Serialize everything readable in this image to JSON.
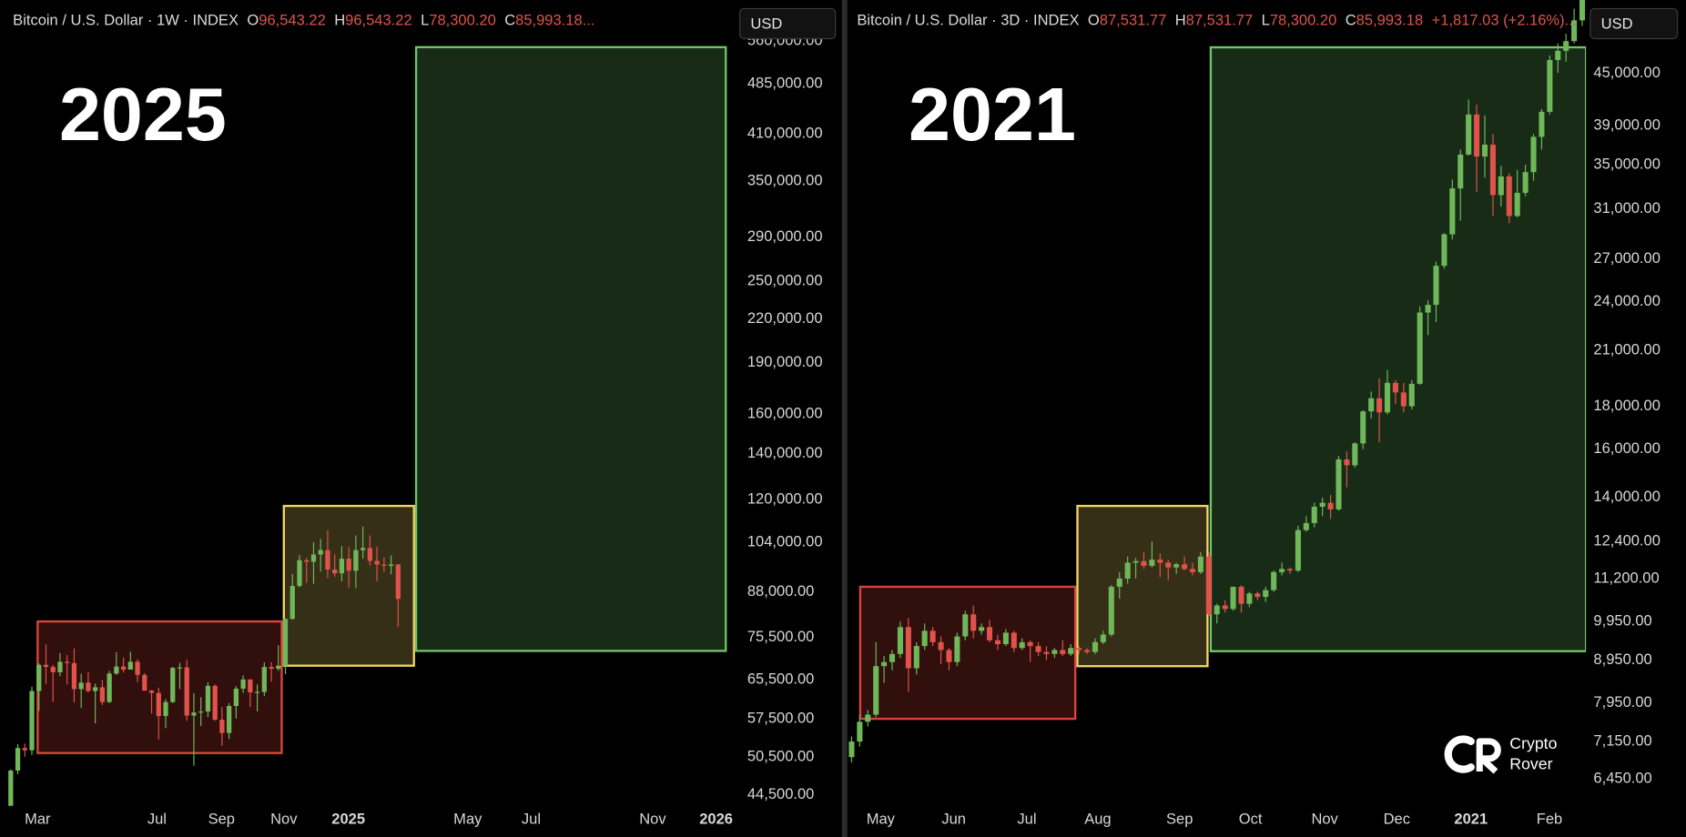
{
  "chart_data": [
    {
      "type": "candlestick",
      "header": {
        "symbol": "Bitcoin / U.S. Dollar · 1W · INDEX",
        "fields": [
          [
            "O",
            "96,543.22"
          ],
          [
            "H",
            "96,543.22"
          ],
          [
            "L",
            "78,300.20"
          ],
          [
            "C",
            "85,993.18..."
          ]
        ]
      },
      "currency": "USD",
      "year_label": "2025",
      "categories": [
        "Mar",
        "Jul",
        "Sep",
        "Nov",
        "2025",
        "May",
        "Jul",
        "Nov",
        "2026"
      ],
      "log_scale": true,
      "ylim": [
        42900,
        643000
      ],
      "yticks": [
        {
          "value": 44500,
          "label": "44,500.00"
        },
        {
          "value": 50500,
          "label": "50,500.00"
        },
        {
          "value": 57500,
          "label": "57,500.00"
        },
        {
          "value": 65500,
          "label": "65,500.00"
        },
        {
          "value": 75500,
          "label": "75,500.00"
        },
        {
          "value": 88000,
          "label": "88,000.00"
        },
        {
          "value": 104000,
          "label": "104,000.00"
        },
        {
          "value": 120000,
          "label": "120,000.00"
        },
        {
          "value": 140000,
          "label": "140,000.00"
        },
        {
          "value": 160000,
          "label": "160,000.00"
        },
        {
          "value": 190000,
          "label": "190,000.00"
        },
        {
          "value": 220000,
          "label": "220,000.00"
        },
        {
          "value": 250000,
          "label": "250,000.00"
        },
        {
          "value": 290000,
          "label": "290,000.00"
        },
        {
          "value": 350000,
          "label": "350,000.00"
        },
        {
          "value": 410000,
          "label": "410,000.00"
        },
        {
          "value": 485000,
          "label": "485,000.00"
        },
        {
          "value": 560000,
          "label": "560,000.00"
        }
      ],
      "up_color": "#6fb85a",
      "down_color": "#e0534b",
      "zones": [
        {
          "color": "#d9443c",
          "low": 51230,
          "high": 79700
        },
        {
          "color": "#f0d468",
          "low": 68700,
          "high": 117500
        },
        {
          "color": "#6fc46a",
          "low": 72200,
          "high": 548800
        }
      ],
      "candles": [
        [
          42600,
          48500,
          42500,
          48300
        ],
        [
          48300,
          52800,
          47700,
          52100
        ],
        [
          52100,
          52900,
          50600,
          51700
        ],
        [
          51700,
          64000,
          50900,
          63100
        ],
        [
          63100,
          69200,
          59000,
          68900
        ],
        [
          68900,
          73800,
          64600,
          68400
        ],
        [
          68400,
          68900,
          60800,
          67200
        ],
        [
          67200,
          71700,
          66300,
          69600
        ],
        [
          69600,
          71200,
          64500,
          69300
        ],
        [
          69300,
          72800,
          60700,
          63500
        ],
        [
          63500,
          66900,
          59600,
          64900
        ],
        [
          64900,
          67200,
          62800,
          63100
        ],
        [
          63100,
          64700,
          56600,
          63900
        ],
        [
          63900,
          65500,
          60200,
          60800
        ],
        [
          60800,
          67500,
          60600,
          66900
        ],
        [
          66900,
          71900,
          66600,
          68500
        ],
        [
          68500,
          70600,
          67100,
          67800
        ],
        [
          67800,
          72000,
          67800,
          69600
        ],
        [
          69600,
          70200,
          65000,
          66600
        ],
        [
          66600,
          67000,
          63100,
          63200
        ],
        [
          63200,
          63300,
          58500,
          62700
        ],
        [
          62700,
          63800,
          53600,
          58000
        ],
        [
          58000,
          61400,
          55700,
          60800
        ],
        [
          60800,
          68400,
          60600,
          68200
        ],
        [
          68200,
          69400,
          63500,
          68300
        ],
        [
          68300,
          70100,
          57100,
          58100
        ],
        [
          58100,
          62600,
          49100,
          58700
        ],
        [
          58700,
          61800,
          56100,
          58900
        ],
        [
          58900,
          65000,
          57800,
          64200
        ],
        [
          64200,
          64500,
          57100,
          57300
        ],
        [
          57300,
          59800,
          52500,
          54800
        ],
        [
          54800,
          60600,
          53700,
          60000
        ],
        [
          60000,
          64100,
          57500,
          63600
        ],
        [
          63600,
          66500,
          62700,
          65600
        ],
        [
          65600,
          65600,
          59800,
          62800
        ],
        [
          62800,
          64500,
          58900,
          62900
        ],
        [
          62900,
          69500,
          62000,
          68400
        ],
        [
          68400,
          69500,
          65100,
          68000
        ],
        [
          68000,
          73600,
          67500,
          68700
        ],
        [
          68700,
          80500,
          66800,
          80400
        ],
        [
          80400,
          93500,
          80200,
          89800
        ],
        [
          89800,
          99600,
          89400,
          97900
        ],
        [
          97900,
          98700,
          90800,
          97400
        ],
        [
          97400,
          104000,
          90500,
          99800
        ],
        [
          99800,
          105200,
          94200,
          101300
        ],
        [
          101300,
          108300,
          92200,
          94900
        ],
        [
          94900,
          99900,
          92600,
          93700
        ],
        [
          93700,
          102700,
          91200,
          98400
        ],
        [
          98400,
          102300,
          89300,
          94500
        ],
        [
          94500,
          106400,
          89100,
          101300
        ],
        [
          101300,
          109600,
          98400,
          102000
        ],
        [
          102000,
          106400,
          96200,
          97700
        ],
        [
          97700,
          102500,
          91200,
          96500
        ],
        [
          96500,
          98800,
          94100,
          96100
        ],
        [
          96100,
          99500,
          93400,
          96543.22
        ],
        [
          96543.22,
          96543.22,
          78300.2,
          85993.18
        ]
      ]
    },
    {
      "type": "candlestick",
      "header": {
        "symbol": "Bitcoin / U.S. Dollar · 3D · INDEX",
        "fields": [
          [
            "O",
            "87,531.77"
          ],
          [
            "H",
            "87,531.77"
          ],
          [
            "L",
            "78,300.20"
          ],
          [
            "C",
            "85,993.18"
          ]
        ],
        "change": "+1,817.03 (+2.16%)..."
      },
      "currency": "USD",
      "year_label": "2021",
      "categories": [
        "May",
        "Jun",
        "Jul",
        "Aug",
        "Sep",
        "Oct",
        "Nov",
        "Dec",
        "2021",
        "Feb"
      ],
      "log_scale": true,
      "ylim": [
        5990,
        55100
      ],
      "yticks": [
        {
          "value": 6450,
          "label": "6,450.00"
        },
        {
          "value": 7150,
          "label": "7,150.00"
        },
        {
          "value": 7950,
          "label": "7,950.00"
        },
        {
          "value": 8950,
          "label": "8,950.00"
        },
        {
          "value": 9950,
          "label": "9,950.00"
        },
        {
          "value": 11200,
          "label": "11,200.00"
        },
        {
          "value": 12400,
          "label": "12,400.00"
        },
        {
          "value": 14000,
          "label": "14,000.00"
        },
        {
          "value": 16000,
          "label": "16,000.00"
        },
        {
          "value": 18000,
          "label": "18,000.00"
        },
        {
          "value": 21000,
          "label": "21,000.00"
        },
        {
          "value": 24000,
          "label": "24,000.00"
        },
        {
          "value": 27000,
          "label": "27,000.00"
        },
        {
          "value": 31000,
          "label": "31,000.00"
        },
        {
          "value": 35000,
          "label": "35,000.00"
        },
        {
          "value": 39000,
          "label": "39,000.00"
        },
        {
          "value": 45000,
          "label": "45,000.00"
        }
      ],
      "up_color": "#6fb85a",
      "down_color": "#e0534b",
      "zones": [
        {
          "color": "#d9443c",
          "low": 7612,
          "high": 10950
        },
        {
          "color": "#f0d468",
          "low": 8800,
          "high": 13680
        },
        {
          "color": "#6fc46a",
          "low": 9170,
          "high": 48370
        }
      ],
      "candles": [
        [
          6850,
          7250,
          6750,
          7150
        ],
        [
          7150,
          7700,
          7050,
          7550
        ],
        [
          7550,
          7800,
          7450,
          7700
        ],
        [
          7700,
          9400,
          7650,
          8800
        ],
        [
          8800,
          9050,
          8400,
          8900
        ],
        [
          8900,
          9200,
          8700,
          9100
        ],
        [
          9100,
          9950,
          9000,
          9800
        ],
        [
          9800,
          10050,
          8200,
          8750
        ],
        [
          8750,
          9400,
          8600,
          9300
        ],
        [
          9300,
          9900,
          9200,
          9700
        ],
        [
          9700,
          9800,
          9300,
          9400
        ],
        [
          9400,
          9550,
          8850,
          9200
        ],
        [
          9200,
          9250,
          8700,
          8900
        ],
        [
          8900,
          9650,
          8800,
          9550
        ],
        [
          9550,
          10250,
          9450,
          10150
        ],
        [
          10150,
          10400,
          9500,
          9700
        ],
        [
          9700,
          9900,
          9600,
          9800
        ],
        [
          9800,
          10000,
          9400,
          9450
        ],
        [
          9450,
          9600,
          9200,
          9350
        ],
        [
          9350,
          9750,
          9300,
          9650
        ],
        [
          9650,
          9700,
          9150,
          9250
        ],
        [
          9250,
          9500,
          9200,
          9400
        ],
        [
          9400,
          9450,
          8900,
          9300
        ],
        [
          9300,
          9400,
          9050,
          9150
        ],
        [
          9150,
          9300,
          8950,
          9100
        ],
        [
          9100,
          9250,
          9000,
          9200
        ],
        [
          9200,
          9450,
          9050,
          9100
        ],
        [
          9100,
          9350,
          9050,
          9250
        ],
        [
          9250,
          9300,
          9100,
          9200
        ],
        [
          9200,
          9250,
          9100,
          9150
        ],
        [
          9150,
          9500,
          9100,
          9400
        ],
        [
          9400,
          9700,
          9350,
          9600
        ],
        [
          9600,
          11000,
          9550,
          10950
        ],
        [
          10950,
          11400,
          10600,
          11200
        ],
        [
          11200,
          11900,
          11050,
          11700
        ],
        [
          11700,
          11850,
          11200,
          11750
        ],
        [
          11750,
          12050,
          11500,
          11600
        ],
        [
          11600,
          12400,
          11550,
          11800
        ],
        [
          11800,
          12000,
          11250,
          11700
        ],
        [
          11700,
          11800,
          11150,
          11550
        ],
        [
          11550,
          11700,
          11350,
          11650
        ],
        [
          11650,
          11900,
          11450,
          11500
        ],
        [
          11500,
          11700,
          11300,
          11400
        ],
        [
          11400,
          12050,
          11350,
          11900
        ],
        [
          11900,
          12050,
          10100,
          10150
        ],
        [
          10150,
          10450,
          9900,
          10400
        ],
        [
          10400,
          10550,
          10200,
          10300
        ],
        [
          10300,
          10900,
          10250,
          10950
        ],
        [
          10950,
          11000,
          10200,
          10450
        ],
        [
          10450,
          10800,
          10350,
          10750
        ],
        [
          10750,
          10800,
          10550,
          10650
        ],
        [
          10650,
          10950,
          10500,
          10850
        ],
        [
          10850,
          11450,
          10800,
          11400
        ],
        [
          11400,
          11700,
          11300,
          11500
        ],
        [
          11500,
          11550,
          11350,
          11450
        ],
        [
          11450,
          12950,
          11400,
          12800
        ],
        [
          12800,
          13300,
          12750,
          13050
        ],
        [
          13050,
          13800,
          12900,
          13650
        ],
        [
          13650,
          14000,
          13300,
          13800
        ],
        [
          13800,
          14100,
          13200,
          13550
        ],
        [
          13550,
          15700,
          13500,
          15550
        ],
        [
          15550,
          15900,
          14400,
          15300
        ],
        [
          15300,
          16300,
          15200,
          16250
        ],
        [
          16250,
          17800,
          16000,
          17750
        ],
        [
          17750,
          18750,
          17400,
          18400
        ],
        [
          18400,
          19450,
          16300,
          17700
        ],
        [
          17700,
          19900,
          17600,
          19200
        ],
        [
          19200,
          19350,
          18100,
          18700
        ],
        [
          18700,
          19200,
          17700,
          18000
        ],
        [
          18000,
          19350,
          17850,
          19150
        ],
        [
          19150,
          23700,
          19100,
          23300
        ],
        [
          23300,
          24100,
          21900,
          23800
        ],
        [
          23800,
          26800,
          22700,
          26500
        ],
        [
          26500,
          29000,
          26300,
          28900
        ],
        [
          28900,
          33600,
          28500,
          32800
        ],
        [
          32800,
          36500,
          30000,
          36000
        ],
        [
          36000,
          41900,
          35900,
          40200
        ],
        [
          40200,
          41300,
          32500,
          35800
        ],
        [
          35800,
          40100,
          33800,
          37000
        ],
        [
          37000,
          38100,
          30400,
          32200
        ],
        [
          32200,
          34900,
          31200,
          33900
        ],
        [
          33900,
          34200,
          29800,
          30400
        ],
        [
          30400,
          34500,
          30300,
          32400
        ],
        [
          32400,
          35000,
          32100,
          34300
        ],
        [
          34300,
          38100,
          33500,
          37800
        ],
        [
          37800,
          40800,
          36500,
          40500
        ],
        [
          40500,
          47300,
          40200,
          46700
        ],
        [
          46700,
          48900,
          45100,
          47900
        ],
        [
          47900,
          50200,
          46500,
          49200
        ],
        [
          49200,
          53800,
          48900,
          52100
        ],
        [
          52100,
          56300,
          51300,
          55900
        ]
      ]
    }
  ],
  "watermark": {
    "line1": "Crypto",
    "line2": "Rover"
  }
}
